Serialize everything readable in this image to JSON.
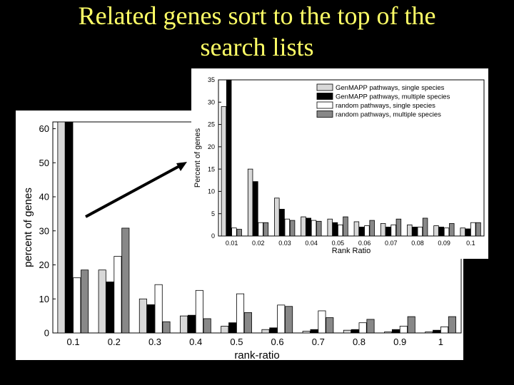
{
  "slide": {
    "title_line1": "Related genes sort to the top of the",
    "title_line2": "search lists",
    "title_color": "#ffff66",
    "background": "#000000"
  },
  "chart_data": [
    {
      "type": "bar",
      "ylabel": "percent of genes",
      "xlabel": "rank-ratio",
      "categories": [
        "0.1",
        "0.2",
        "0.3",
        "0.4",
        "0.5",
        "0.6",
        "0.7",
        "0.8",
        "0.9",
        "1"
      ],
      "yticks": [
        "0",
        "10",
        "20",
        "30",
        "40",
        "50",
        "60"
      ],
      "ylim": [
        0,
        62
      ],
      "grid": false,
      "series": [
        {
          "color": "#d8d8d8",
          "values": [
            62,
            18.5,
            10,
            5,
            2,
            1,
            0.5,
            0.8,
            0.3,
            0.3
          ]
        },
        {
          "color": "#000000",
          "values": [
            62,
            15,
            8.3,
            5.2,
            3,
            1.5,
            1,
            1,
            1,
            0.8
          ]
        },
        {
          "color": "#ffffff",
          "values": [
            16.2,
            22.5,
            14.2,
            12.5,
            11.5,
            8.2,
            6.5,
            3,
            2,
            1.8
          ]
        },
        {
          "color": "#888888",
          "values": [
            18.5,
            30.8,
            3.3,
            4.2,
            6,
            7.8,
            4.5,
            4,
            4.8,
            4.8
          ]
        }
      ]
    },
    {
      "type": "bar",
      "ylabel": "Percent of genes",
      "xlabel": "Rank Ratio",
      "categories": [
        "0.01",
        "0.02",
        "0.03",
        "0.04",
        "0.05",
        "0.06",
        "0.07",
        "0.08",
        "0.09",
        "0.1"
      ],
      "yticks": [
        "0",
        "5",
        "10",
        "15",
        "20",
        "25",
        "30",
        "35"
      ],
      "ylim": [
        0,
        35
      ],
      "grid": false,
      "legend_position": "top-right",
      "series": [
        {
          "name": "GenMAPP pathways, single species",
          "color": "#d8d8d8",
          "values": [
            29,
            15,
            8.5,
            4.3,
            3.8,
            3.2,
            2.8,
            2.5,
            2.3,
            1.8
          ]
        },
        {
          "name": "GenMAPP pathways, multiple species",
          "color": "#000000",
          "values": [
            35,
            12.2,
            6,
            4,
            3,
            2,
            2,
            2,
            2,
            1.6
          ]
        },
        {
          "name": "random pathways, single species",
          "color": "#ffffff",
          "values": [
            1.8,
            3,
            3.8,
            3.5,
            2.5,
            2.3,
            2.5,
            2,
            1.8,
            3
          ]
        },
        {
          "name": "random pathways, multiple species",
          "color": "#888888",
          "values": [
            1.5,
            3,
            3.5,
            3.3,
            4.3,
            3.5,
            3.8,
            4,
            2.8,
            3
          ]
        }
      ]
    }
  ]
}
